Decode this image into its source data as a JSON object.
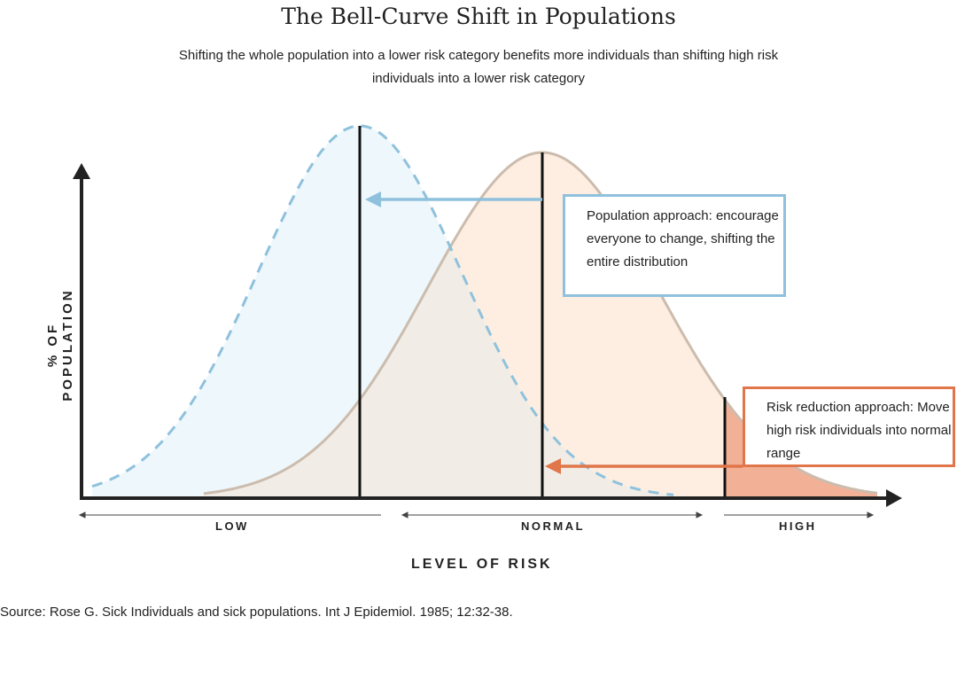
{
  "title": "The Bell-Curve Shift in Populations",
  "subtitle": "Shifting the whole population into a lower risk category benefits more individuals than shifting high risk individuals into a lower risk category",
  "y_axis_label": "% OF POPULATION",
  "x_axis_label": "LEVEL OF RISK",
  "x_ranges": [
    "LOW",
    "NORMAL",
    "HIGH"
  ],
  "population_box": "Population approach: encourage everyone to change, shifting the entire distribution",
  "risk_box": "Risk reduction approach: Move high risk individuals into normal range",
  "source": "Source: Rose G. Sick Individuals and sick populations. Int J Epidemiol. 1985; 12:32-38.",
  "colors": {
    "shifted_fill": "#eef7fb",
    "shifted_line": "#8fc1dd",
    "original_fill": "#fdeee1",
    "original_line": "#cbbcae",
    "overlap_fill": "#f1ede6",
    "high_tail": "#f2b197",
    "risk_accent": "#e0764a"
  }
}
